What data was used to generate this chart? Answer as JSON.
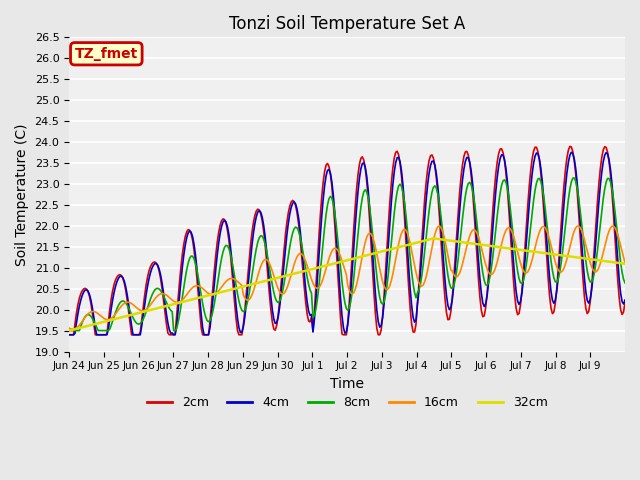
{
  "title": "Tonzi Soil Temperature Set A",
  "xlabel": "Time",
  "ylabel": "Soil Temperature (C)",
  "ylim": [
    19.0,
    26.5
  ],
  "annotation_text": "TZ_fmet",
  "annotation_bg": "#ffffcc",
  "annotation_border": "#cc0000",
  "colors": {
    "2cm": "#dd0000",
    "4cm": "#0000cc",
    "8cm": "#00aa00",
    "16cm": "#ff8800",
    "32cm": "#dddd00"
  },
  "legend_labels": [
    "2cm",
    "4cm",
    "8cm",
    "16cm",
    "32cm"
  ],
  "bg_color": "#e8e8e8",
  "plot_bg": "#f0f0f0",
  "grid_color": "#ffffff",
  "tick_labels": [
    "Jun 24",
    "Jun 25",
    "Jun 26",
    "Jun 27",
    "Jun 28",
    "Jun 29",
    "Jun 30",
    "Jul 1",
    "Jul 2",
    "Jul 3",
    "Jul 4",
    "Jul 5",
    "Jul 6",
    "Jul 7",
    "Jul 8",
    "Jul 9"
  ]
}
